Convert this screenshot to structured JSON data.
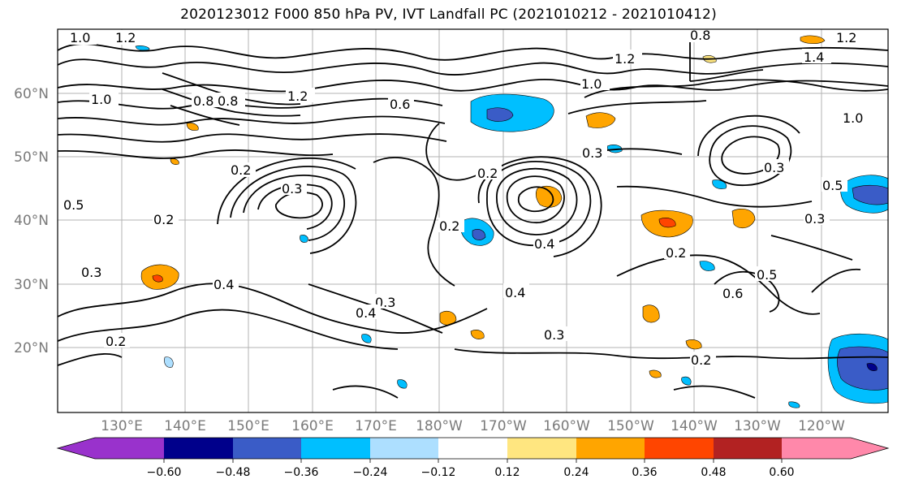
{
  "title": "2020123012 F000 850 hPa PV, IVT Landfall PC (2021010212 - 2021010412)",
  "lat_labels": [
    "60°N",
    "50°N",
    "40°N",
    "30°N",
    "20°N"
  ],
  "lon_labels": [
    "130°E",
    "140°E",
    "150°E",
    "160°E",
    "170°E",
    "180°W",
    "170°W",
    "160°W",
    "150°W",
    "140°W",
    "130°W",
    "120°W"
  ],
  "contour_labels": [
    "1.0",
    "1.2",
    "1.2",
    "1.0",
    "0.8",
    "0.8",
    "0.6",
    "0.2",
    "0.2",
    "0.3",
    "0.2",
    "0.3",
    "0.5",
    "0.2",
    "0.4",
    "0.3",
    "0.4",
    "0.4",
    "0.2",
    "0.3",
    "0.2",
    "0.2",
    "0.6",
    "0.5",
    "0.3",
    "1.0",
    "0.5",
    "0.3",
    "1.0",
    "1.2",
    "0.8",
    "1.2",
    "1.4",
    "0.3",
    "0.4"
  ],
  "colorbar": {
    "ticks": [
      "−0.60",
      "−0.48",
      "−0.36",
      "−0.24",
      "−0.12",
      "0.12",
      "0.24",
      "0.36",
      "0.48",
      "0.60"
    ],
    "colors": [
      "#9932CC",
      "#00008B",
      "#3A5CC7",
      "#00BFFF",
      "#ADDFFF",
      "#FFFFFF",
      "#FFE680",
      "#FFA500",
      "#FF4500",
      "#B22222",
      "#FF88AA"
    ]
  }
}
